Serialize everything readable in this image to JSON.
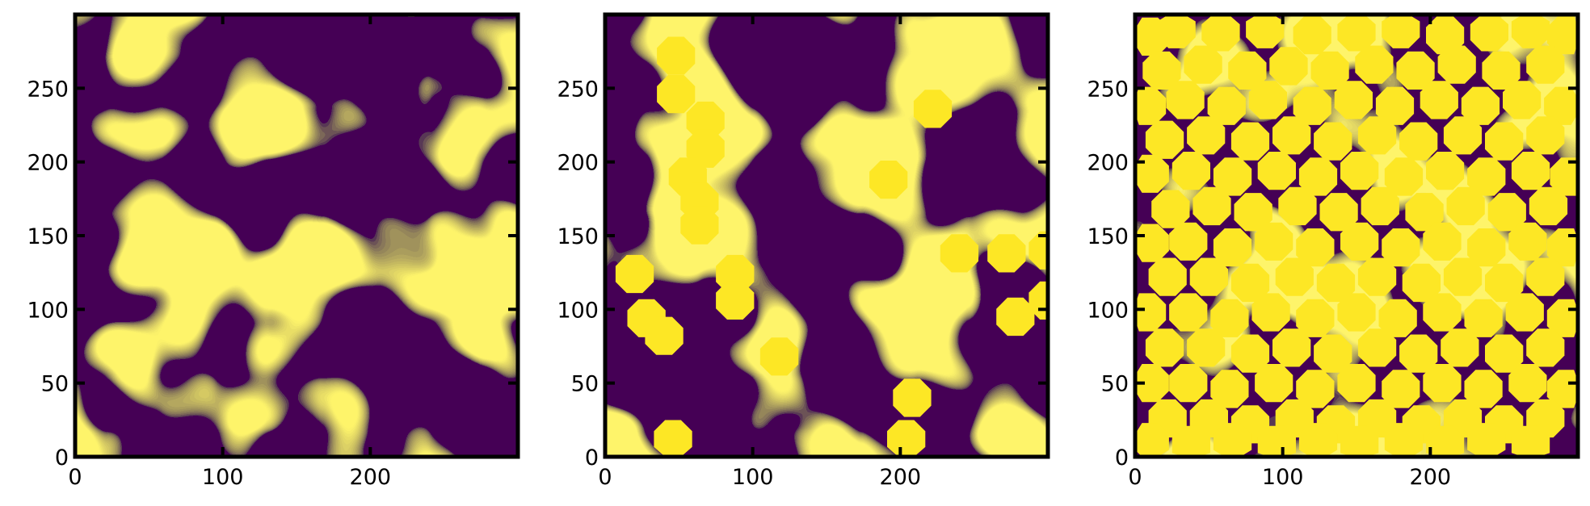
{
  "chart_data": [
    {
      "type": "heatmap",
      "title": "",
      "xlabel": "",
      "ylabel": "",
      "xlim": [
        0,
        300
      ],
      "ylim": [
        0,
        300
      ],
      "xticks": [
        0,
        100,
        200
      ],
      "yticks": [
        0,
        50,
        100,
        150,
        200,
        250
      ],
      "values": [
        0,
        1
      ],
      "colors": {
        "0": "#440154",
        "1": "#fde725"
      },
      "description_of_field": "binary phase map",
      "circles": []
    },
    {
      "type": "heatmap",
      "title": "",
      "xlabel": "",
      "ylabel": "",
      "xlim": [
        0,
        300
      ],
      "ylim": [
        0,
        300
      ],
      "xticks": [
        0,
        100,
        200
      ],
      "yticks": [
        0,
        50,
        100,
        150,
        200,
        250
      ],
      "values": [
        0,
        1
      ],
      "colors": {
        "0": "#440154",
        "1": "#fde725"
      },
      "circles": [
        [
          48,
          272
        ],
        [
          48,
          246
        ],
        [
          222,
          236
        ],
        [
          68,
          228
        ],
        [
          68,
          209
        ],
        [
          56,
          190
        ],
        [
          64,
          173
        ],
        [
          64,
          157
        ],
        [
          192,
          188
        ],
        [
          272,
          138
        ],
        [
          300,
          140
        ],
        [
          240,
          138
        ],
        [
          20,
          124
        ],
        [
          88,
          124
        ],
        [
          88,
          106
        ],
        [
          28,
          94
        ],
        [
          40,
          82
        ],
        [
          118,
          68
        ],
        [
          278,
          95
        ],
        [
          300,
          106
        ],
        [
          208,
          40
        ],
        [
          46,
          12
        ],
        [
          204,
          12
        ]
      ]
    },
    {
      "type": "heatmap",
      "title": "",
      "xlabel": "",
      "ylabel": "",
      "xlim": [
        0,
        300
      ],
      "ylim": [
        0,
        300
      ],
      "xticks": [
        0,
        100,
        200
      ],
      "yticks": [
        0,
        50,
        100,
        150,
        200,
        250
      ],
      "values": [
        0,
        1
      ],
      "colors": {
        "0": "#440154",
        "1": "#fde725"
      },
      "circles": [
        [
          10,
          285
        ],
        [
          28,
          290
        ],
        [
          58,
          288
        ],
        [
          88,
          290
        ],
        [
          120,
          286
        ],
        [
          150,
          288
        ],
        [
          180,
          290
        ],
        [
          210,
          286
        ],
        [
          240,
          288
        ],
        [
          268,
          290
        ],
        [
          292,
          286
        ],
        [
          18,
          262
        ],
        [
          46,
          266
        ],
        [
          76,
          262
        ],
        [
          104,
          265
        ],
        [
          132,
          262
        ],
        [
          162,
          266
        ],
        [
          190,
          262
        ],
        [
          218,
          266
        ],
        [
          248,
          262
        ],
        [
          278,
          266
        ],
        [
          8,
          238
        ],
        [
          34,
          242
        ],
        [
          62,
          238
        ],
        [
          90,
          242
        ],
        [
          120,
          238
        ],
        [
          148,
          242
        ],
        [
          176,
          238
        ],
        [
          206,
          242
        ],
        [
          234,
          238
        ],
        [
          262,
          242
        ],
        [
          290,
          238
        ],
        [
          20,
          215
        ],
        [
          48,
          218
        ],
        [
          78,
          214
        ],
        [
          106,
          218
        ],
        [
          134,
          214
        ],
        [
          164,
          218
        ],
        [
          192,
          214
        ],
        [
          222,
          218
        ],
        [
          250,
          214
        ],
        [
          278,
          218
        ],
        [
          10,
          192
        ],
        [
          38,
          194
        ],
        [
          66,
          190
        ],
        [
          96,
          194
        ],
        [
          124,
          190
        ],
        [
          152,
          194
        ],
        [
          182,
          190
        ],
        [
          210,
          194
        ],
        [
          238,
          190
        ],
        [
          268,
          194
        ],
        [
          294,
          190
        ],
        [
          24,
          168
        ],
        [
          52,
          170
        ],
        [
          80,
          166
        ],
        [
          110,
          170
        ],
        [
          138,
          166
        ],
        [
          166,
          170
        ],
        [
          196,
          166
        ],
        [
          224,
          170
        ],
        [
          252,
          166
        ],
        [
          280,
          170
        ],
        [
          10,
          145
        ],
        [
          36,
          146
        ],
        [
          66,
          142
        ],
        [
          94,
          146
        ],
        [
          122,
          142
        ],
        [
          152,
          146
        ],
        [
          180,
          142
        ],
        [
          208,
          146
        ],
        [
          238,
          142
        ],
        [
          266,
          146
        ],
        [
          292,
          142
        ],
        [
          22,
          122
        ],
        [
          50,
          122
        ],
        [
          78,
          118
        ],
        [
          108,
          122
        ],
        [
          136,
          118
        ],
        [
          164,
          122
        ],
        [
          194,
          118
        ],
        [
          222,
          122
        ],
        [
          250,
          118
        ],
        [
          278,
          122
        ],
        [
          8,
          98
        ],
        [
          36,
          98
        ],
        [
          64,
          94
        ],
        [
          92,
          98
        ],
        [
          122,
          94
        ],
        [
          150,
          98
        ],
        [
          178,
          94
        ],
        [
          208,
          98
        ],
        [
          236,
          94
        ],
        [
          264,
          98
        ],
        [
          292,
          94
        ],
        [
          20,
          74
        ],
        [
          48,
          74
        ],
        [
          78,
          70
        ],
        [
          106,
          74
        ],
        [
          134,
          70
        ],
        [
          164,
          74
        ],
        [
          192,
          70
        ],
        [
          220,
          74
        ],
        [
          250,
          70
        ],
        [
          278,
          74
        ],
        [
          10,
          50
        ],
        [
          36,
          50
        ],
        [
          64,
          46
        ],
        [
          94,
          50
        ],
        [
          122,
          46
        ],
        [
          150,
          50
        ],
        [
          180,
          46
        ],
        [
          208,
          50
        ],
        [
          236,
          46
        ],
        [
          266,
          50
        ],
        [
          292,
          46
        ],
        [
          22,
          26
        ],
        [
          50,
          26
        ],
        [
          78,
          22
        ],
        [
          108,
          26
        ],
        [
          136,
          22
        ],
        [
          164,
          26
        ],
        [
          194,
          22
        ],
        [
          222,
          26
        ],
        [
          250,
          22
        ],
        [
          278,
          26
        ],
        [
          10,
          10
        ],
        [
          38,
          8
        ],
        [
          66,
          10
        ],
        [
          96,
          8
        ],
        [
          124,
          10
        ],
        [
          152,
          8
        ],
        [
          182,
          10
        ],
        [
          210,
          8
        ],
        [
          238,
          10
        ],
        [
          268,
          8
        ]
      ]
    }
  ]
}
